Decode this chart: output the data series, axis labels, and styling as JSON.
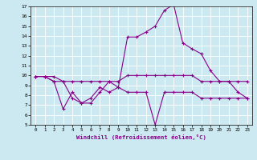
{
  "xlabel": "Windchill (Refroidissement éolien,°C)",
  "background_color": "#cce8f0",
  "line_color": "#880088",
  "xlim": [
    -0.5,
    23.5
  ],
  "ylim": [
    5,
    17
  ],
  "xticks": [
    0,
    1,
    2,
    3,
    4,
    5,
    6,
    7,
    8,
    9,
    10,
    11,
    12,
    13,
    14,
    15,
    16,
    17,
    18,
    19,
    20,
    21,
    22,
    23
  ],
  "yticks": [
    5,
    6,
    7,
    8,
    9,
    10,
    11,
    12,
    13,
    14,
    15,
    16,
    17
  ],
  "series": [
    {
      "x": [
        0,
        1,
        2,
        3,
        4,
        5,
        6,
        7,
        8,
        9,
        10,
        11,
        12,
        13,
        14,
        15,
        16,
        17,
        18,
        19,
        20,
        21,
        22,
        23
      ],
      "y": [
        9.9,
        9.9,
        9.9,
        9.4,
        9.4,
        9.4,
        9.4,
        9.4,
        9.4,
        9.4,
        10.0,
        10.0,
        10.0,
        10.0,
        10.0,
        10.0,
        10.0,
        10.0,
        9.4,
        9.4,
        9.4,
        9.4,
        9.4,
        9.4
      ]
    },
    {
      "x": [
        0,
        1,
        2,
        3,
        4,
        5,
        6,
        7,
        8,
        9,
        10,
        11,
        12,
        13,
        14,
        15,
        16,
        17,
        18,
        19,
        20,
        21,
        22,
        23
      ],
      "y": [
        9.9,
        9.9,
        9.4,
        9.4,
        7.7,
        7.2,
        7.7,
        8.8,
        8.3,
        8.8,
        8.3,
        8.3,
        8.3,
        5.0,
        8.3,
        8.3,
        8.3,
        8.3,
        7.7,
        7.7,
        7.7,
        7.7,
        7.7,
        7.7
      ]
    },
    {
      "x": [
        0,
        1,
        2,
        3,
        4,
        5,
        6,
        7,
        8,
        9,
        10,
        11,
        12,
        13,
        14,
        15,
        16,
        17,
        18,
        19,
        20,
        21,
        22,
        23
      ],
      "y": [
        9.9,
        9.9,
        9.4,
        6.6,
        8.3,
        7.2,
        7.2,
        8.3,
        9.4,
        8.8,
        13.9,
        13.9,
        14.4,
        15.0,
        16.6,
        17.2,
        13.3,
        12.7,
        12.2,
        10.5,
        9.4,
        9.4,
        8.3,
        7.7
      ]
    }
  ]
}
